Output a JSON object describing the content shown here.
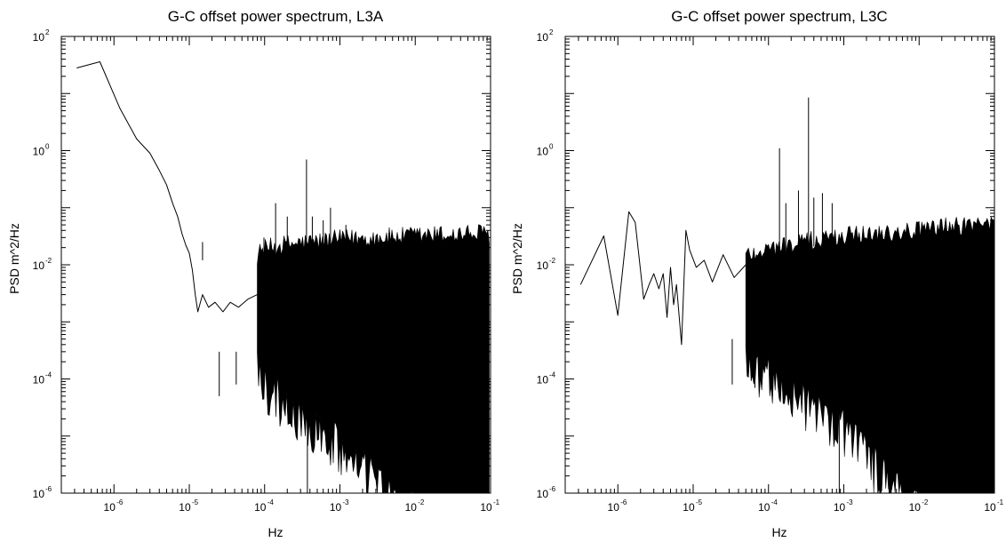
{
  "chart_data": [
    {
      "type": "line",
      "title": "G-C offset power spectrum, L3A",
      "xlabel": "Hz",
      "ylabel": "PSD m^2/Hz",
      "x_scale": "log",
      "y_scale": "log",
      "xlim": [
        2e-07,
        0.1
      ],
      "ylim": [
        1e-06,
        100
      ],
      "grid": false,
      "x_ticks": [
        {
          "base": "10",
          "exp": "-6",
          "value": 1e-06
        },
        {
          "base": "10",
          "exp": "-5",
          "value": 1e-05
        },
        {
          "base": "10",
          "exp": "-4",
          "value": 0.0001
        },
        {
          "base": "10",
          "exp": "-3",
          "value": 0.001
        },
        {
          "base": "10",
          "exp": "-2",
          "value": 0.01
        },
        {
          "base": "10",
          "exp": "-1",
          "value": 0.1
        }
      ],
      "y_ticks": [
        {
          "base": "10",
          "exp": "2",
          "value": 100
        },
        {
          "base": "10",
          "exp": "0",
          "value": 1
        },
        {
          "base": "10",
          "exp": "-2",
          "value": 0.01
        },
        {
          "base": "10",
          "exp": "-4",
          "value": 0.0001
        },
        {
          "base": "10",
          "exp": "-6",
          "value": 1e-06
        }
      ],
      "series": [
        {
          "x": [
            3.2e-07,
            6.5e-07,
            1.2e-06,
            2e-06,
            3e-06,
            4e-06,
            5e-06,
            6e-06,
            7e-06,
            8e-06,
            9e-06,
            1e-05,
            1.1e-05,
            1.2e-05,
            1.3e-05,
            1.5e-05,
            1.8e-05,
            2.2e-05,
            2.8e-05,
            3.5e-05,
            4.5e-05,
            6e-05,
            8e-05
          ],
          "y": [
            28,
            36,
            5.5,
            1.6,
            0.9,
            0.45,
            0.25,
            0.12,
            0.07,
            0.035,
            0.022,
            0.016,
            0.008,
            0.003,
            0.0015,
            0.003,
            0.0018,
            0.0022,
            0.0015,
            0.0022,
            0.0018,
            0.0025,
            0.003
          ]
        }
      ],
      "envelope": {
        "x": [
          8e-05,
          0.0001,
          0.0002,
          0.0005,
          0.001,
          0.002,
          0.005,
          0.01,
          0.02,
          0.05,
          0.1
        ],
        "upper": [
          0.012,
          0.015,
          0.018,
          0.02,
          0.022,
          0.023,
          0.024,
          0.025,
          0.026,
          0.027,
          0.028
        ],
        "lower": [
          0.0003,
          0.0002,
          8e-05,
          3e-05,
          1.5e-05,
          6e-06,
          2e-06,
          1e-06,
          1e-06,
          1e-06,
          1e-06
        ]
      },
      "spikes": [
        {
          "x": 1.5e-05,
          "y": 0.025
        },
        {
          "x": 2.5e-05,
          "y": 5e-05
        },
        {
          "x": 4.2e-05,
          "y": 8e-05
        },
        {
          "x": 9.8e-05,
          "y": 0.03
        },
        {
          "x": 0.00014,
          "y": 0.12
        },
        {
          "x": 0.0002,
          "y": 0.07
        },
        {
          "x": 0.00036,
          "y": 0.7
        },
        {
          "x": 0.00043,
          "y": 0.07
        },
        {
          "x": 0.0006,
          "y": 0.06
        },
        {
          "x": 0.00075,
          "y": 0.1
        },
        {
          "x": 0.0012,
          "y": 0.05
        },
        {
          "x": 0.00037,
          "y": 9e-07
        }
      ]
    },
    {
      "type": "line",
      "title": "G-C offset power spectrum, L3C",
      "xlabel": "Hz",
      "ylabel": "PSD m^2/Hz",
      "x_scale": "log",
      "y_scale": "log",
      "xlim": [
        2e-07,
        0.1
      ],
      "ylim": [
        1e-06,
        100
      ],
      "grid": false,
      "x_ticks": [
        {
          "base": "10",
          "exp": "-6",
          "value": 1e-06
        },
        {
          "base": "10",
          "exp": "-5",
          "value": 1e-05
        },
        {
          "base": "10",
          "exp": "-4",
          "value": 0.0001
        },
        {
          "base": "10",
          "exp": "-3",
          "value": 0.001
        },
        {
          "base": "10",
          "exp": "-2",
          "value": 0.01
        },
        {
          "base": "10",
          "exp": "-1",
          "value": 0.1
        }
      ],
      "y_ticks": [
        {
          "base": "10",
          "exp": "2",
          "value": 100
        },
        {
          "base": "10",
          "exp": "0",
          "value": 1
        },
        {
          "base": "10",
          "exp": "-2",
          "value": 0.01
        },
        {
          "base": "10",
          "exp": "-4",
          "value": 0.0001
        },
        {
          "base": "10",
          "exp": "-6",
          "value": 1e-06
        }
      ],
      "series": [
        {
          "x": [
            3.2e-07,
            6.5e-07,
            1e-06,
            1.4e-06,
            1.7e-06,
            2.2e-06,
            2.6e-06,
            3e-06,
            3.5e-06,
            4e-06,
            4.5e-06,
            5e-06,
            5.5e-06,
            6e-06,
            7e-06,
            8e-06,
            9e-06,
            1.1e-05,
            1.4e-05,
            1.8e-05,
            2.5e-05,
            3.5e-05,
            5e-05
          ],
          "y": [
            0.0045,
            0.032,
            0.0013,
            0.085,
            0.055,
            0.0025,
            0.0045,
            0.007,
            0.0038,
            0.007,
            0.0012,
            0.009,
            0.002,
            0.0045,
            0.0004,
            0.04,
            0.018,
            0.009,
            0.012,
            0.005,
            0.015,
            0.006,
            0.01
          ]
        }
      ],
      "envelope": {
        "x": [
          5e-05,
          0.0001,
          0.0002,
          0.0005,
          0.001,
          0.002,
          0.005,
          0.01,
          0.02,
          0.05,
          0.1
        ],
        "upper": [
          0.012,
          0.015,
          0.018,
          0.022,
          0.025,
          0.028,
          0.03,
          0.032,
          0.035,
          0.04,
          0.045
        ],
        "lower": [
          0.0005,
          0.0003,
          0.00015,
          6e-05,
          3e-05,
          1e-05,
          3e-06,
          1e-06,
          1e-06,
          1e-06,
          1e-06
        ]
      },
      "spikes": [
        {
          "x": 0.00014,
          "y": 1.1
        },
        {
          "x": 0.00017,
          "y": 0.12
        },
        {
          "x": 0.00025,
          "y": 0.2
        },
        {
          "x": 0.00034,
          "y": 8.5
        },
        {
          "x": 0.0004,
          "y": 0.15
        },
        {
          "x": 0.00052,
          "y": 0.18
        },
        {
          "x": 0.0007,
          "y": 0.12
        },
        {
          "x": 3.3e-05,
          "y": 8e-05
        },
        {
          "x": 6.6e-05,
          "y": 7e-05
        },
        {
          "x": 0.00087,
          "y": 9e-07
        }
      ]
    }
  ]
}
